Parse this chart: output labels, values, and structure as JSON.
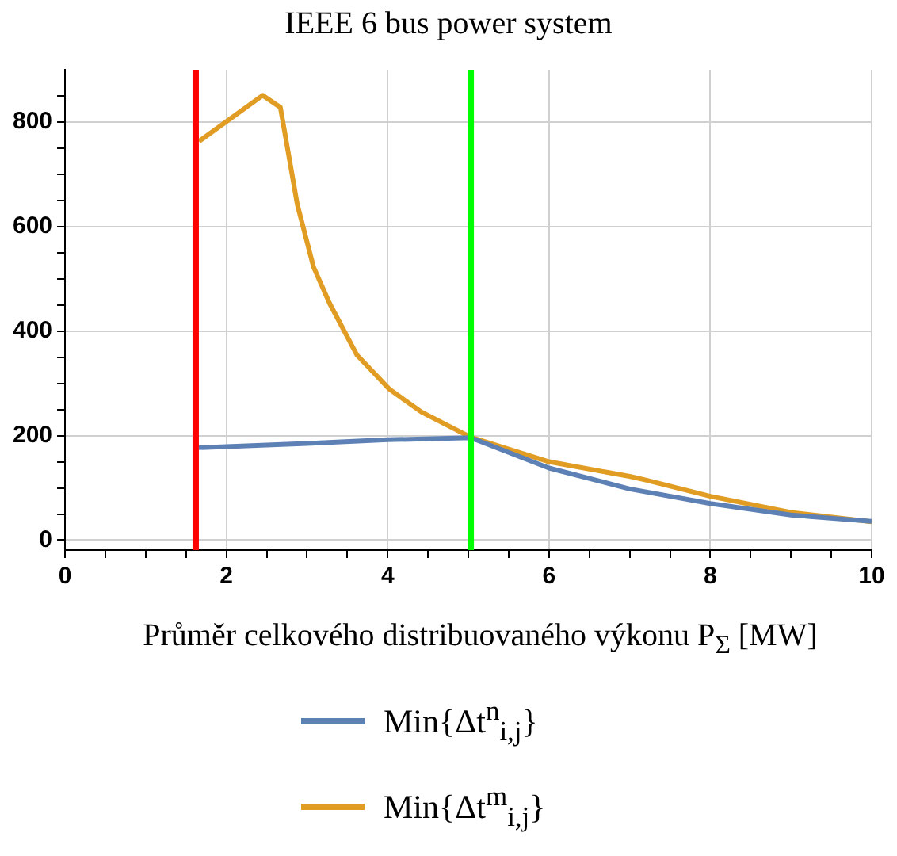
{
  "chart_data": {
    "type": "line",
    "title": "IEEE 6 bus power system",
    "xlabel": "Průměr celkového distribuovaného výkonu P$_{Σ}$ [MW]",
    "xlim": [
      0,
      10
    ],
    "xticks": [
      0,
      {
        "value": 0.5,
        "label": null
      },
      2,
      {
        "value": 1,
        "label": null
      },
      {
        "value": 1.5,
        "label": null
      },
      {
        "value": 2.5,
        "label": null
      },
      {
        "value": 3,
        "label": null
      },
      {
        "value": 3.5,
        "label": null
      },
      4,
      {
        "value": 4.5,
        "label": null
      },
      {
        "value": 5,
        "label": null
      },
      {
        "value": 5.5,
        "label": null
      },
      6,
      {
        "value": 6.5,
        "label": null
      },
      {
        "value": 7,
        "label": null
      },
      {
        "value": 7.5,
        "label": null
      },
      8,
      {
        "value": 8.5,
        "label": null
      },
      {
        "value": 9,
        "label": null
      },
      {
        "value": 9.5,
        "label": null
      },
      10
    ],
    "ylim": [
      -19,
      900
    ],
    "yticks": [
      0,
      {
        "value": 50,
        "label": null
      },
      {
        "value": 100,
        "label": null
      },
      {
        "value": 150,
        "label": null
      },
      200,
      {
        "value": 250,
        "label": null
      },
      {
        "value": 300,
        "label": null
      },
      {
        "value": 350,
        "label": null
      },
      400,
      {
        "value": 450,
        "label": null
      },
      {
        "value": 500,
        "label": null
      },
      {
        "value": 550,
        "label": null
      },
      600,
      {
        "value": 650,
        "label": null
      },
      {
        "value": 700,
        "label": null
      },
      {
        "value": 750,
        "label": null
      },
      800,
      {
        "value": 850,
        "label": null
      }
    ],
    "grid": true,
    "legend": "bottom",
    "marker": "none",
    "line_style": "solid",
    "series": [
      {
        "name": "Min{Δt$^{n}$$_{i,j}$}",
        "color": "#5e81b5",
        "x": [
          1.66,
          3,
          4,
          5.03,
          6,
          7,
          8,
          9,
          10
        ],
        "values": [
          177,
          185,
          192,
          196,
          138,
          98,
          70,
          48,
          36
        ]
      },
      {
        "name": "Min{Δt$^{m}$$_{i,j}$}",
        "color": "#e19c24",
        "x": [
          1.66,
          2.45,
          2.67,
          2.88,
          3.08,
          3.28,
          3.62,
          4.02,
          4.42,
          5.03,
          6,
          7,
          7.2,
          8,
          9,
          10
        ],
        "values": [
          763,
          851,
          828,
          642,
          523,
          453,
          354,
          289,
          245,
          197,
          150,
          122,
          115,
          84,
          53,
          35
        ]
      }
    ],
    "ref_lines": [
      {
        "axis": "x",
        "value": 1.62,
        "color": "#ff0000"
      },
      {
        "axis": "x",
        "value": 5.03,
        "color": "#00ff00"
      }
    ]
  }
}
